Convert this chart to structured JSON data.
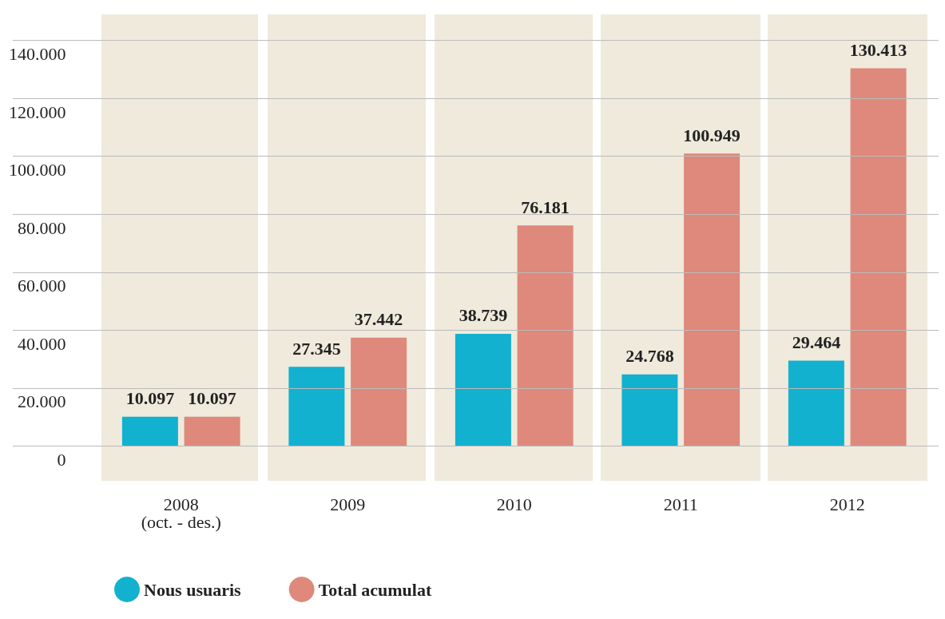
{
  "chart_data": {
    "type": "bar",
    "categories": [
      "2008\n(oct. - des.)",
      "2009",
      "2010",
      "2011",
      "2012"
    ],
    "series": [
      {
        "name": "Nous usuaris",
        "color": "#12b1cf",
        "values": [
          10097,
          27345,
          38739,
          24768,
          29464
        ],
        "value_labels": [
          "10.097",
          "27.345",
          "38.739",
          "24.768",
          "29.464"
        ]
      },
      {
        "name": "Total acumulat",
        "color": "#de897b",
        "values": [
          10097,
          37442,
          76181,
          100949,
          130413
        ],
        "value_labels": [
          "10.097",
          "37.442",
          "76.181",
          "100.949",
          "130.413"
        ]
      }
    ],
    "ylim": [
      -12000,
      149000
    ],
    "yticks": [
      {
        "value": 0,
        "label": "0"
      },
      {
        "value": 20000,
        "label": "20.000"
      },
      {
        "value": 40000,
        "label": "40.000"
      },
      {
        "value": 60000,
        "label": "60.000"
      },
      {
        "value": 80000,
        "label": "80.000"
      },
      {
        "value": 100000,
        "label": "100.000"
      },
      {
        "value": 120000,
        "label": "120.000"
      },
      {
        "value": 140000,
        "label": "140.000"
      }
    ],
    "bands": [
      {
        "axis": "x",
        "from": "2008\n(oct. - des.)",
        "to": "2008\n(oct. - des.)",
        "color": "#efeadc"
      },
      {
        "axis": "x",
        "from": "2009",
        "to": "2009",
        "color": "#efeadc"
      },
      {
        "axis": "x",
        "from": "2010",
        "to": "2010",
        "color": "#efeadc"
      },
      {
        "axis": "x",
        "from": "2011",
        "to": "2011",
        "color": "#efeadc"
      },
      {
        "axis": "x",
        "from": "2012",
        "to": "2012",
        "color": "#efeadc"
      }
    ],
    "grid": "y",
    "legend": "bottom left"
  }
}
